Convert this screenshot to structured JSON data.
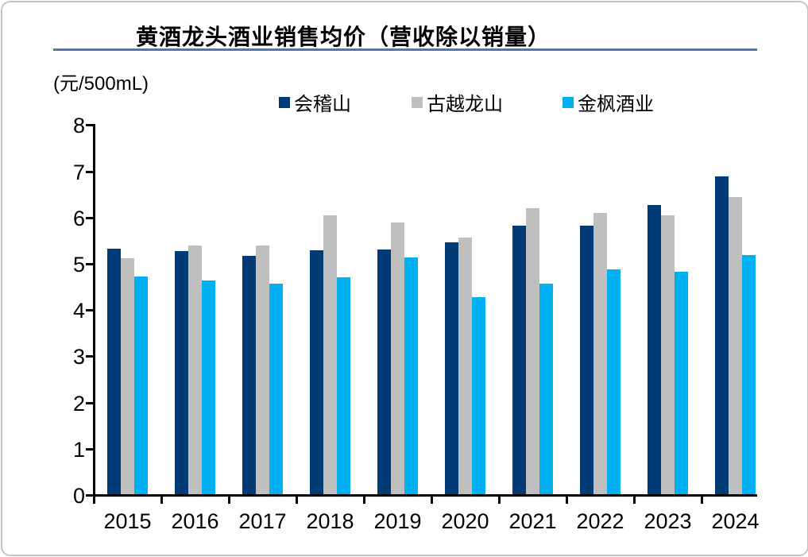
{
  "chart_data": {
    "type": "bar",
    "title": "黄酒龙头酒业销售均价（营收除以销量）",
    "unit_label": "(元/500mL)",
    "xlabel": "",
    "ylabel": "元/500mL",
    "categories": [
      "2015",
      "2016",
      "2017",
      "2018",
      "2019",
      "2020",
      "2021",
      "2022",
      "2023",
      "2024"
    ],
    "series": [
      {
        "name": "会稽山",
        "color": "#003b76",
        "values": [
          5.35,
          5.3,
          5.19,
          5.31,
          5.33,
          5.48,
          5.84,
          5.84,
          6.29,
          6.91
        ]
      },
      {
        "name": "古越龙山",
        "color": "#bfbfbf",
        "values": [
          5.14,
          5.41,
          5.41,
          6.06,
          5.91,
          5.58,
          6.22,
          6.11,
          6.06,
          6.46
        ]
      },
      {
        "name": "金枫酒业",
        "color": "#00b0f0",
        "values": [
          4.75,
          4.65,
          4.58,
          4.73,
          5.15,
          4.3,
          4.58,
          4.89,
          4.84,
          5.2
        ]
      }
    ],
    "ylim": [
      0,
      8
    ],
    "yticks": [
      0,
      1,
      2,
      3,
      4,
      5,
      6,
      7,
      8
    ],
    "grid": false,
    "legend_position": "top"
  },
  "styles": {
    "accent_line": "#4c79ab",
    "axis_color": "#000000",
    "text_color": "#000000",
    "card_border": "#c4c4c4",
    "background": "#ffffff"
  }
}
